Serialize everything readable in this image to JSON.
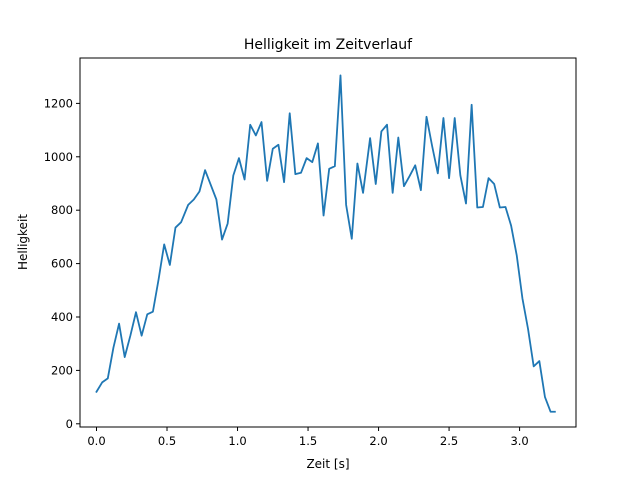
{
  "chart_data": {
    "type": "line",
    "title": "Helligkeit im Zeitverlauf",
    "xlabel": "Zeit [s]",
    "ylabel": "Helligkeit",
    "xlim": [
      -0.117,
      3.4
    ],
    "ylim": [
      -12,
      1370
    ],
    "xticks": [
      0.0,
      0.5,
      1.0,
      1.5,
      2.0,
      2.5,
      3.0
    ],
    "xtick_labels": [
      "0.0",
      "0.5",
      "1.0",
      "1.5",
      "2.0",
      "2.5",
      "3.0"
    ],
    "yticks": [
      0,
      200,
      400,
      600,
      800,
      1000,
      1200
    ],
    "ytick_labels": [
      "0",
      "200",
      "400",
      "600",
      "800",
      "1000",
      "1200"
    ],
    "grid": false,
    "line_color": "#1f77b4",
    "series": [
      {
        "x": [
          0.0,
          0.04,
          0.08,
          0.12,
          0.16,
          0.2,
          0.24,
          0.28,
          0.32,
          0.36,
          0.4,
          0.44,
          0.48,
          0.52,
          0.56,
          0.6,
          0.65,
          0.69,
          0.73,
          0.77,
          0.81,
          0.85,
          0.89,
          0.93,
          0.97,
          1.01,
          1.05,
          1.09,
          1.13,
          1.17,
          1.21,
          1.25,
          1.29,
          1.33,
          1.37,
          1.41,
          1.45,
          1.49,
          1.53,
          1.57,
          1.61,
          1.65,
          1.69,
          1.73,
          1.77,
          1.81,
          1.85,
          1.89,
          1.94,
          1.98,
          2.02,
          2.06,
          2.1,
          2.14,
          2.18,
          2.22,
          2.26,
          2.3,
          2.34,
          2.38,
          2.42,
          2.46,
          2.5,
          2.54,
          2.58,
          2.62,
          2.66,
          2.7,
          2.74,
          2.78,
          2.82,
          2.86,
          2.9,
          2.94,
          2.98,
          3.02,
          3.06,
          3.1,
          3.14,
          3.18,
          3.22,
          3.25
        ],
        "y": [
          120,
          155,
          170,
          285,
          375,
          250,
          330,
          418,
          330,
          410,
          420,
          540,
          672,
          595,
          735,
          755,
          820,
          840,
          870,
          950,
          895,
          840,
          690,
          750,
          930,
          995,
          915,
          1120,
          1080,
          1130,
          910,
          1030,
          1045,
          905,
          1163,
          935,
          940,
          995,
          980,
          1050,
          780,
          955,
          965,
          1305,
          820,
          693,
          975,
          865,
          1070,
          898,
          1095,
          1120,
          865,
          1072,
          890,
          928,
          968,
          875,
          1150,
          1040,
          938,
          1145,
          920,
          1145,
          930,
          825,
          1195,
          810,
          812,
          920,
          898,
          810,
          812,
          742,
          630,
          470,
          355,
          215,
          235,
          100,
          45,
          45
        ]
      }
    ]
  }
}
